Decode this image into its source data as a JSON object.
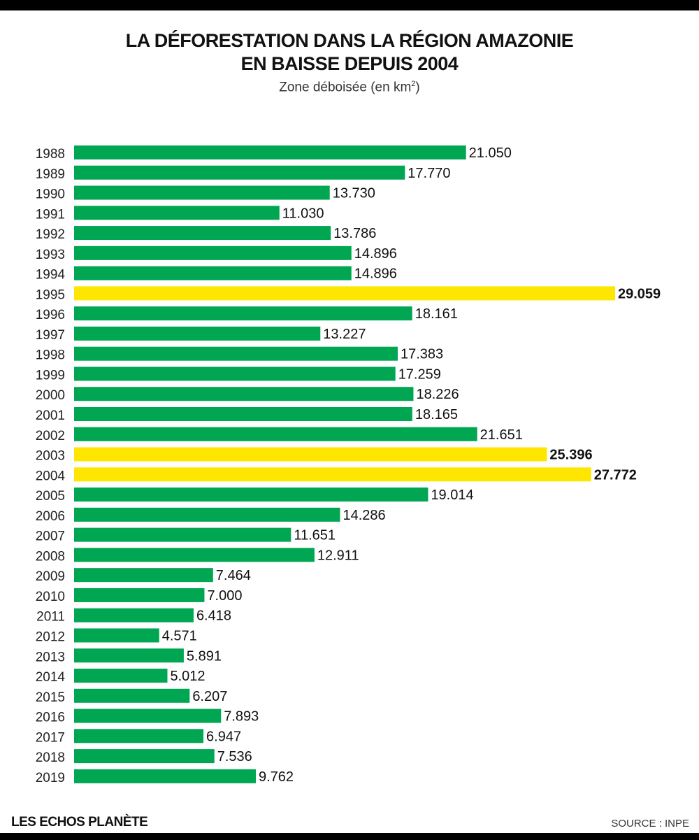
{
  "chart_data": {
    "type": "bar",
    "orientation": "horizontal",
    "title": "LA DÉFORESTATION DANS LA RÉGION AMAZONIE EN BAISSE DEPUIS 2004",
    "title_lines": [
      "LA DÉFORESTATION DANS LA RÉGION AMAZONIE",
      "EN BAISSE DEPUIS 2004"
    ],
    "subtitle": "Zone déboisée (en km",
    "subtitle_sup": "2",
    "subtitle_end": ")",
    "categories": [
      "1988",
      "1989",
      "1990",
      "1991",
      "1992",
      "1993",
      "1994",
      "1995",
      "1996",
      "1997",
      "1998",
      "1999",
      "2000",
      "2001",
      "2002",
      "2003",
      "2004",
      "2005",
      "2006",
      "2007",
      "2008",
      "2009",
      "2010",
      "2011",
      "2012",
      "2013",
      "2014",
      "2015",
      "2016",
      "2017",
      "2018",
      "2019"
    ],
    "values": [
      21050,
      17770,
      13730,
      11030,
      13786,
      14896,
      14896,
      29059,
      18161,
      13227,
      17383,
      17259,
      18226,
      18165,
      21651,
      25396,
      27772,
      19014,
      14286,
      11651,
      12911,
      7464,
      7000,
      6418,
      4571,
      5891,
      5012,
      6207,
      7893,
      6947,
      7536,
      9762
    ],
    "labels": [
      "21.050",
      "17.770",
      "13.730",
      "11.030",
      "13.786",
      "14.896",
      "14.896",
      "29.059",
      "18.161",
      "13.227",
      "17.383",
      "17.259",
      "18.226",
      "18.165",
      "21.651",
      "25.396",
      "27.772",
      "19.014",
      "14.286",
      "11.651",
      "12.911",
      "7.464",
      "7.000",
      "6.418",
      "4.571",
      "5.891",
      "5.012",
      "6.207",
      "7.893",
      "6.947",
      "7.536",
      "9.762"
    ],
    "highlighted": [
      "1995",
      "2003",
      "2004"
    ],
    "xlim": [
      0,
      29059
    ],
    "grid": false,
    "colors": {
      "normal": "#00a651",
      "highlight": "#ffe600"
    }
  },
  "footer": {
    "brand": "LES ECHOS PLANÈTE",
    "source": "SOURCE : INPE"
  }
}
